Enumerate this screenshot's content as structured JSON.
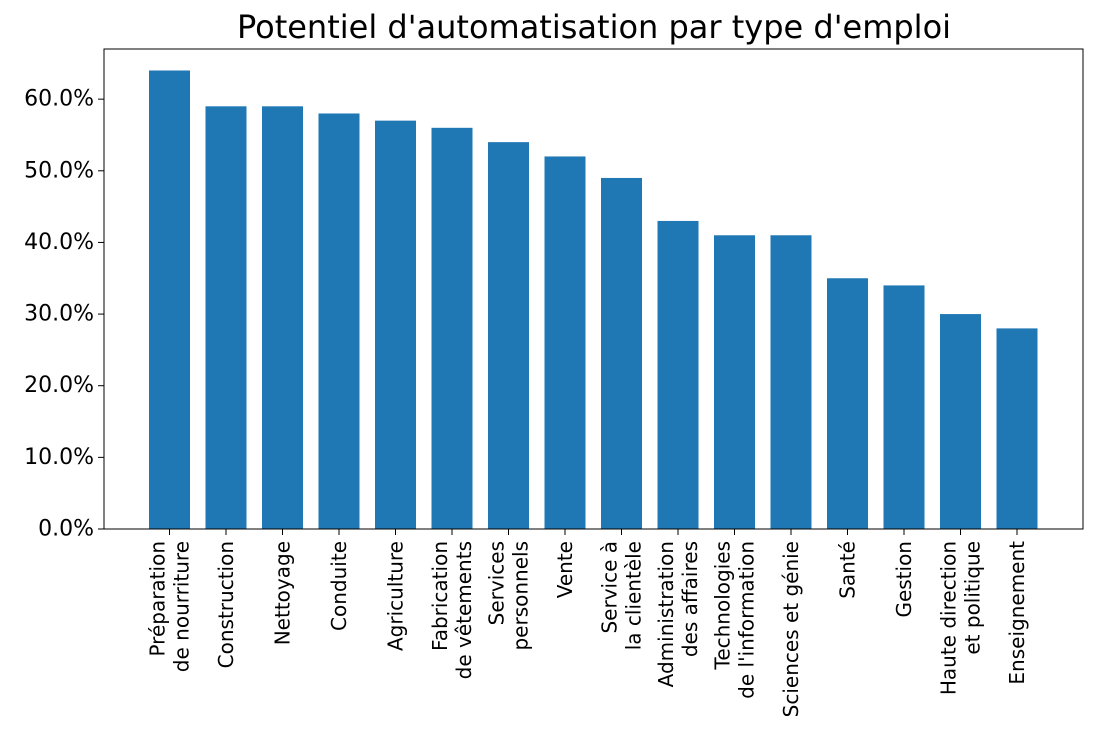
{
  "chart_data": {
    "type": "bar",
    "title": "Potentiel d'automatisation par type d'emploi",
    "xlabel": "",
    "ylabel": "",
    "categories": [
      [
        "Préparation",
        "de nourriture"
      ],
      [
        "Construction"
      ],
      [
        "Nettoyage"
      ],
      [
        "Conduite"
      ],
      [
        "Agriculture"
      ],
      [
        "Fabrication",
        "de vêtements"
      ],
      [
        "Services",
        "personnels"
      ],
      [
        "Vente"
      ],
      [
        "Service à",
        "la clientèle"
      ],
      [
        "Administration",
        "des affaires"
      ],
      [
        "Technologies",
        "de l'information"
      ],
      [
        "Sciences et génie"
      ],
      [
        "Santé"
      ],
      [
        "Gestion"
      ],
      [
        "Haute direction",
        "et politique"
      ],
      [
        "Enseignement"
      ]
    ],
    "values": [
      64,
      59,
      59,
      58,
      57,
      56,
      54,
      52,
      49,
      43,
      41,
      41,
      35,
      34,
      30,
      28
    ],
    "ylim": [
      0,
      67
    ],
    "yticks": [
      0,
      10,
      20,
      30,
      40,
      50,
      60
    ],
    "ytick_labels": [
      "0.0%",
      "10.0%",
      "20.0%",
      "30.0%",
      "40.0%",
      "50.0%",
      "60.0%"
    ],
    "grid": false,
    "legend": "none",
    "bar_color": "#1f77b4"
  }
}
